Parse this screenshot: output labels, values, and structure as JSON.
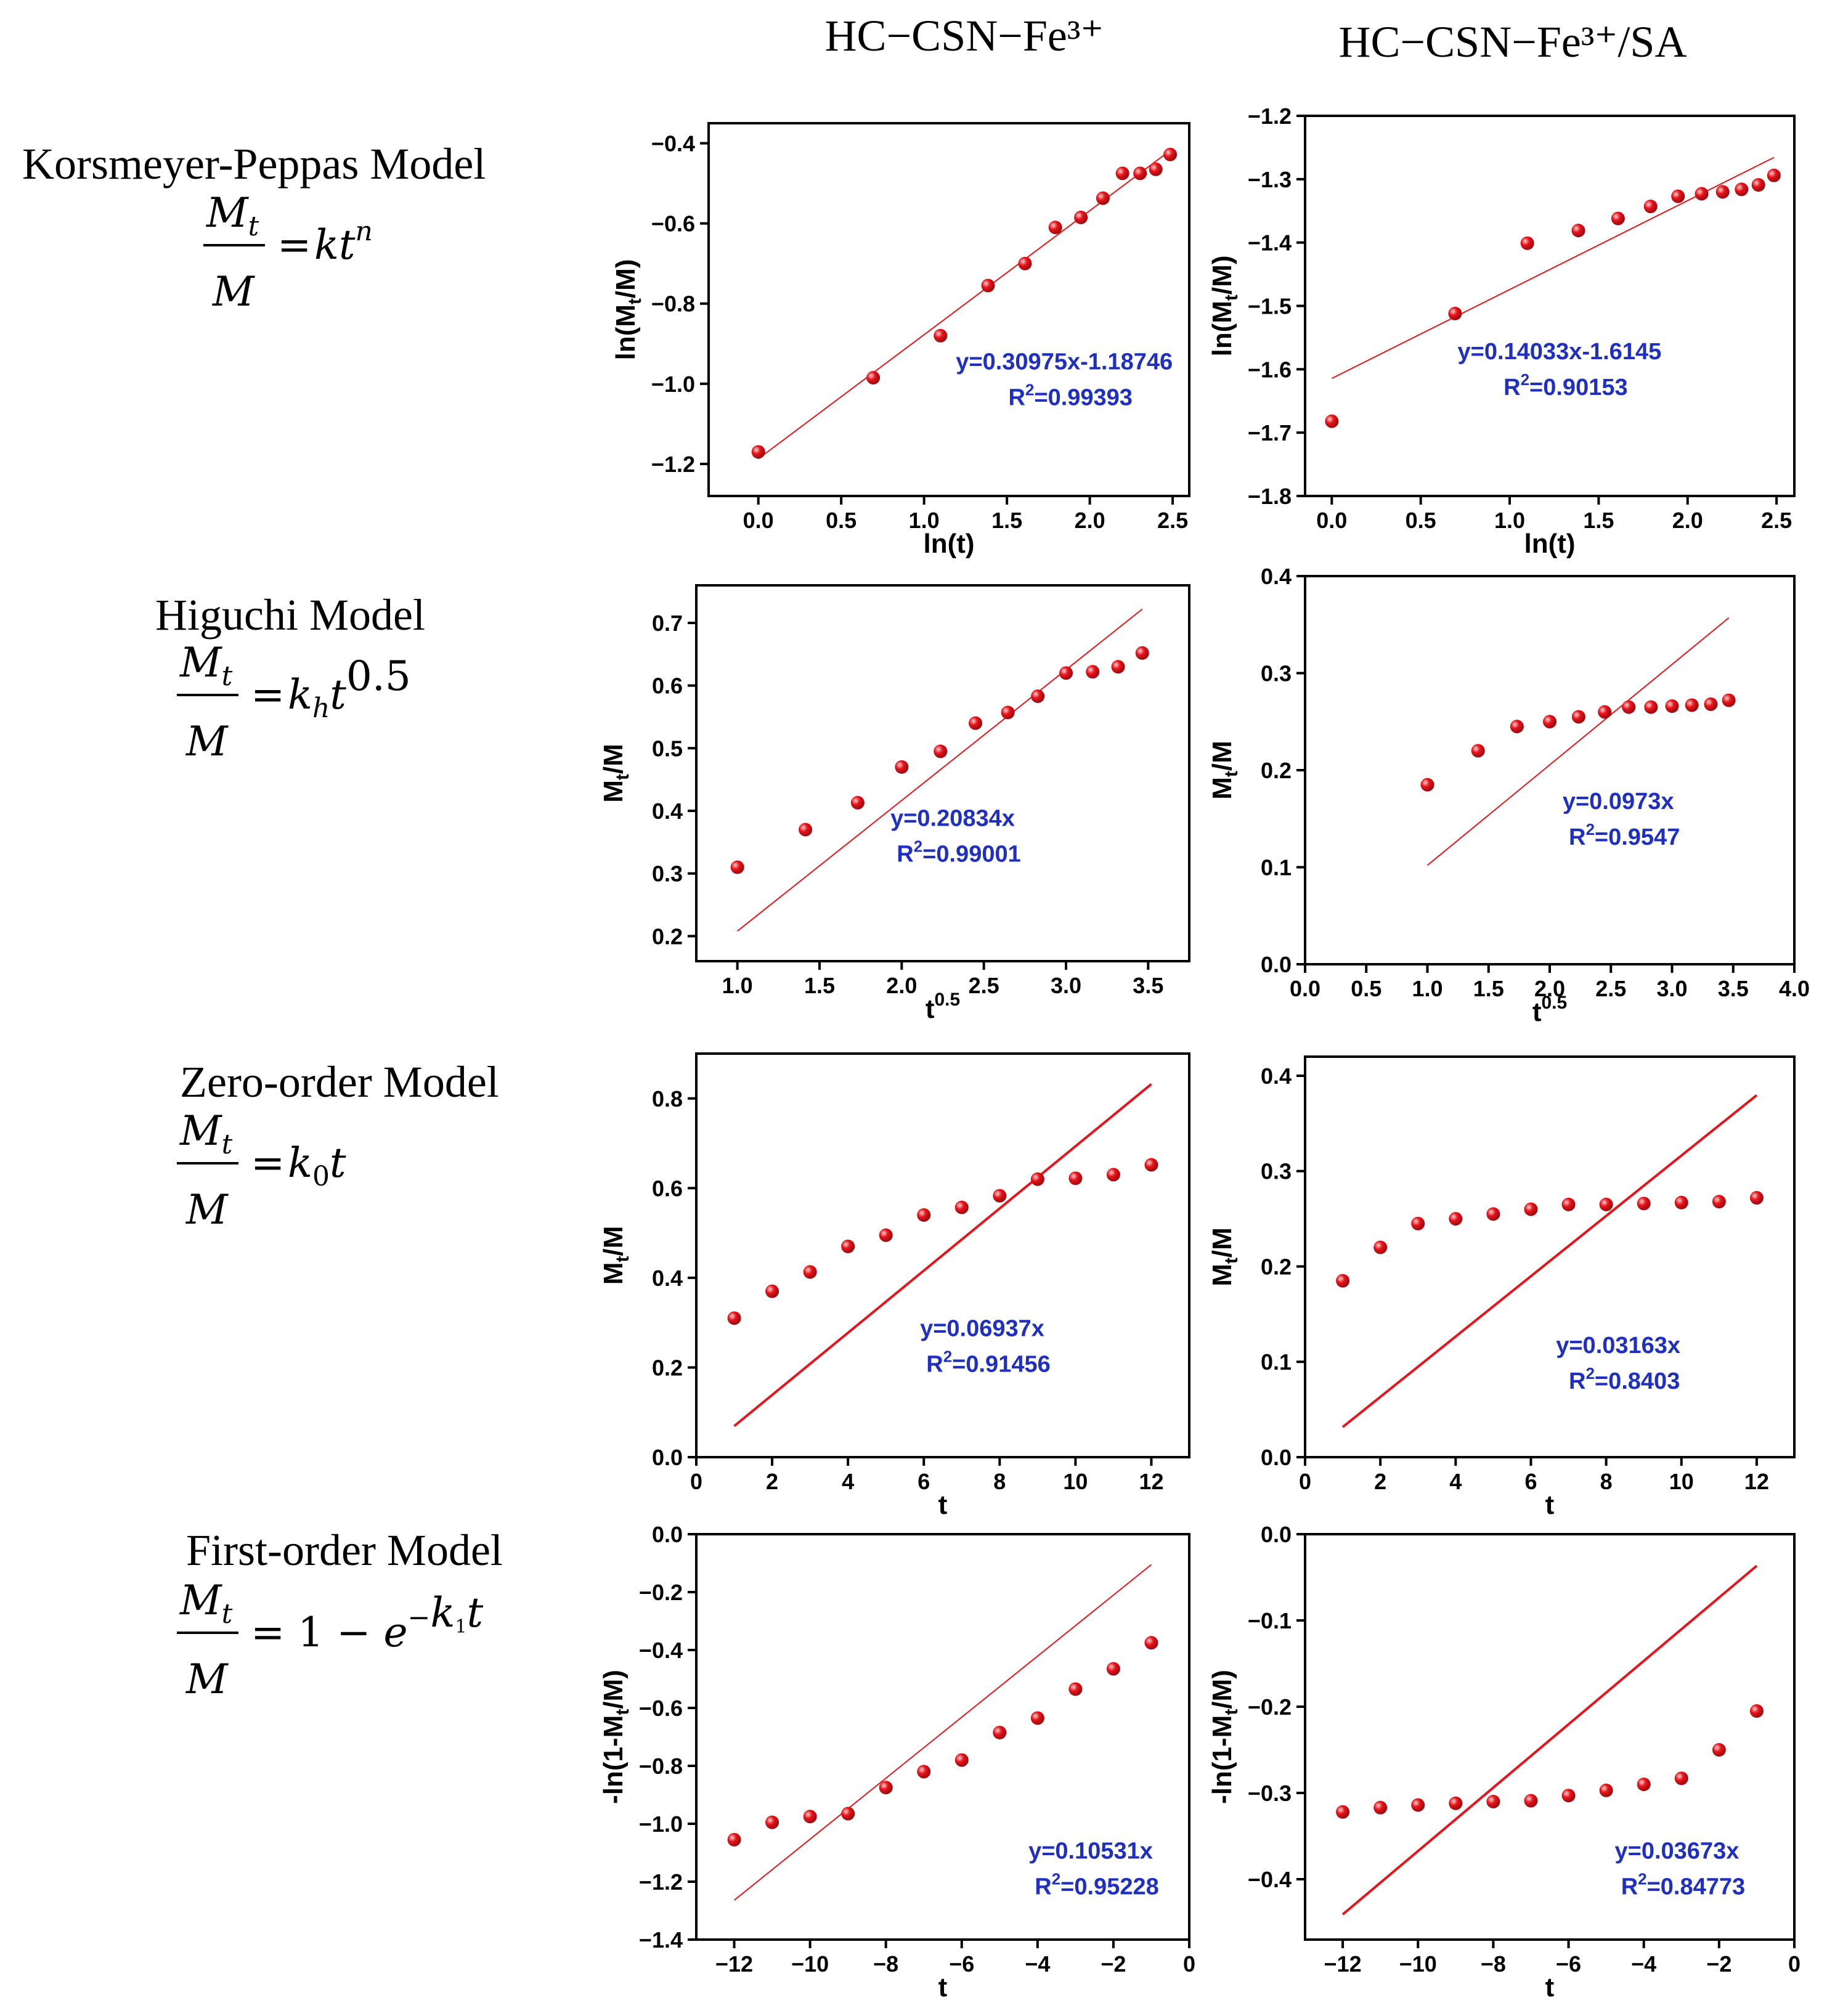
{
  "columns": [
    "HC−CSN−Fe³⁺",
    "HC−CSN−Fe³⁺/SA"
  ],
  "models": [
    {
      "name": "Korsmeyer-Peppas Model",
      "formula": "Mt/M = kt^n"
    },
    {
      "name": "Higuchi Model",
      "formula": "Mt/M = kh t^0.5"
    },
    {
      "name": "Zero-order Model",
      "formula": "Mt/M = k0 t"
    },
    {
      "name": "First-order Model",
      "formula": "Mt/M = 1 − e^(−k1 t)"
    }
  ],
  "chart_data": [
    {
      "type": "scatter",
      "row": 0,
      "col": 0,
      "xlabel": "ln(t)",
      "ylabel": "ln(Mt/M)",
      "xlim": [
        -0.3,
        2.6
      ],
      "ylim": [
        -1.28,
        -0.35
      ],
      "xticks": [
        0.0,
        0.5,
        1.0,
        1.5,
        2.0,
        2.5
      ],
      "yticks": [
        -1.2,
        -1.0,
        -0.8,
        -0.6,
        -0.4
      ],
      "xdec": 1,
      "ydec": 1,
      "x": [
        0.0,
        0.693,
        1.099,
        1.386,
        1.609,
        1.792,
        1.946,
        2.079,
        2.197,
        2.303,
        2.398,
        2.485
      ],
      "y": [
        -1.17,
        -0.985,
        -0.88,
        -0.755,
        -0.7,
        -0.61,
        -0.585,
        -0.537,
        -0.475,
        -0.475,
        -0.465,
        -0.428
      ],
      "fit": {
        "x": [
          0.0,
          2.485
        ],
        "y": [
          -1.187,
          -0.418
        ]
      },
      "equation": "y=0.30975x-1.18746",
      "r2": "=0.99393"
    },
    {
      "type": "scatter",
      "row": 0,
      "col": 1,
      "xlabel": "ln(t)",
      "ylabel": "ln(Mt/M)",
      "xlim": [
        -0.15,
        2.6
      ],
      "ylim": [
        -1.8,
        -1.2
      ],
      "xticks": [
        0.0,
        0.5,
        1.0,
        1.5,
        2.0,
        2.5
      ],
      "yticks": [
        -1.8,
        -1.7,
        -1.6,
        -1.5,
        -1.4,
        -1.3,
        -1.2
      ],
      "xdec": 1,
      "ydec": 1,
      "x": [
        0.0,
        0.693,
        1.099,
        1.386,
        1.609,
        1.792,
        1.946,
        2.079,
        2.197,
        2.303,
        2.398,
        2.485
      ],
      "y": [
        -1.682,
        -1.512,
        -1.401,
        -1.381,
        -1.362,
        -1.343,
        -1.327,
        -1.323,
        -1.32,
        -1.316,
        -1.309,
        -1.294
      ],
      "fit": {
        "x": [
          0.0,
          2.485
        ],
        "y": [
          -1.6145,
          -1.2658
        ]
      },
      "equation": "y=0.14033x-1.6145",
      "r2": "=0.90153"
    },
    {
      "type": "scatter",
      "row": 1,
      "col": 0,
      "xlabel": "t",
      "xsup": "0.5",
      "ylabel": "Mt/M",
      "xlim": [
        0.75,
        3.75
      ],
      "ylim": [
        0.16,
        0.76
      ],
      "xticks": [
        1.0,
        1.5,
        2.0,
        2.5,
        3.0,
        3.5
      ],
      "yticks": [
        0.2,
        0.3,
        0.4,
        0.5,
        0.6,
        0.7
      ],
      "xdec": 1,
      "ydec": 1,
      "x": [
        1.0,
        1.414,
        1.732,
        2.0,
        2.236,
        2.449,
        2.646,
        2.828,
        3.0,
        3.162,
        3.317,
        3.464
      ],
      "y": [
        0.31,
        0.37,
        0.413,
        0.47,
        0.495,
        0.54,
        0.557,
        0.583,
        0.62,
        0.622,
        0.63,
        0.652
      ],
      "fit": {
        "x": [
          1.0,
          3.464
        ],
        "y": [
          0.208,
          0.722
        ]
      },
      "equation": "y=0.20834x",
      "r2": "=0.99001"
    },
    {
      "type": "scatter",
      "row": 1,
      "col": 1,
      "xlabel": "t",
      "xsup": "0.5",
      "ylabel": "Mt/M",
      "xlim": [
        0.0,
        4.0
      ],
      "ylim": [
        0.0,
        0.4
      ],
      "xticks": [
        0.0,
        0.5,
        1.0,
        1.5,
        2.0,
        2.5,
        3.0,
        3.5,
        4.0
      ],
      "yticks": [
        0.0,
        0.1,
        0.2,
        0.3,
        0.4
      ],
      "xdec": 1,
      "ydec": 1,
      "x": [
        1.0,
        1.414,
        1.732,
        2.0,
        2.236,
        2.449,
        2.646,
        2.828,
        3.0,
        3.162,
        3.317,
        3.464
      ],
      "y": [
        0.185,
        0.22,
        0.245,
        0.25,
        0.255,
        0.26,
        0.265,
        0.265,
        0.266,
        0.267,
        0.268,
        0.272
      ],
      "fit": {
        "x": [
          1.0,
          3.464
        ],
        "y": [
          0.102,
          0.357
        ]
      },
      "equation": "y=0.0973x",
      "r2": "=0.9547"
    },
    {
      "type": "scatter",
      "row": 2,
      "col": 0,
      "xlabel": "t",
      "ylabel": "Mt/M",
      "xlim": [
        0,
        13
      ],
      "ylim": [
        0.0,
        0.9
      ],
      "xticks": [
        0,
        2,
        4,
        6,
        8,
        10,
        12
      ],
      "yticks": [
        0.0,
        0.2,
        0.4,
        0.6,
        0.8
      ],
      "xdec": 0,
      "ydec": 1,
      "x": [
        1,
        2,
        3,
        4,
        5,
        6,
        7,
        8,
        9,
        10,
        11,
        12
      ],
      "y": [
        0.31,
        0.37,
        0.413,
        0.47,
        0.495,
        0.54,
        0.557,
        0.583,
        0.62,
        0.622,
        0.63,
        0.652
      ],
      "fit": {
        "x": [
          1,
          12
        ],
        "y": [
          0.0694,
          0.832
        ]
      },
      "equation": "y=0.06937x",
      "r2": "=0.91456"
    },
    {
      "type": "scatter",
      "row": 2,
      "col": 1,
      "xlabel": "t",
      "ylabel": "Mt/M",
      "xlim": [
        0,
        13
      ],
      "ylim": [
        0.0,
        0.42
      ],
      "xticks": [
        0,
        2,
        4,
        6,
        8,
        10,
        12
      ],
      "yticks": [
        0.0,
        0.1,
        0.2,
        0.3,
        0.4
      ],
      "xdec": 0,
      "ydec": 1,
      "x": [
        1,
        2,
        3,
        4,
        5,
        6,
        7,
        8,
        9,
        10,
        11,
        12
      ],
      "y": [
        0.185,
        0.22,
        0.245,
        0.25,
        0.255,
        0.26,
        0.265,
        0.265,
        0.266,
        0.267,
        0.268,
        0.272
      ],
      "fit": {
        "x": [
          1,
          12
        ],
        "y": [
          0.0316,
          0.3796
        ]
      },
      "equation": "y=0.03163x",
      "r2": "=0.8403"
    },
    {
      "type": "scatter",
      "row": 3,
      "col": 0,
      "xlabel": "t",
      "ylabel": "-ln(1-Mt/M)",
      "xlim": [
        -13,
        0
      ],
      "ylim": [
        -1.4,
        0.0
      ],
      "xticks": [
        -12,
        -10,
        -8,
        -6,
        -4,
        -2,
        0
      ],
      "yticks": [
        -1.4,
        -1.2,
        -1.0,
        -0.8,
        -0.6,
        -0.4,
        -0.2,
        0.0
      ],
      "xdec": 0,
      "ydec": 1,
      "x": [
        -12,
        -11,
        -10,
        -9,
        -8,
        -7,
        -6,
        -5,
        -4,
        -3,
        -2,
        -1
      ],
      "y": [
        -1.055,
        -0.995,
        -0.975,
        -0.965,
        -0.875,
        -0.82,
        -0.78,
        -0.685,
        -0.635,
        -0.535,
        -0.465,
        -0.375
      ],
      "fit": {
        "x": [
          -12,
          -1
        ],
        "y": [
          -1.264,
          -0.105
        ]
      },
      "equation": "y=0.10531x",
      "r2": "=0.95228"
    },
    {
      "type": "scatter",
      "row": 3,
      "col": 1,
      "xlabel": "t",
      "ylabel": "-ln(1-Mt/M)",
      "xlim": [
        -13,
        0
      ],
      "ylim": [
        -0.47,
        0.0
      ],
      "xticks": [
        -12,
        -10,
        -8,
        -6,
        -4,
        -2,
        0
      ],
      "yticks": [
        -0.4,
        -0.3,
        -0.2,
        -0.1,
        0.0
      ],
      "xdec": 0,
      "ydec": 1,
      "x": [
        -12,
        -11,
        -10,
        -9,
        -8,
        -7,
        -6,
        -5,
        -4,
        -3,
        -2,
        -1
      ],
      "y": [
        -0.322,
        -0.317,
        -0.314,
        -0.312,
        -0.31,
        -0.309,
        -0.303,
        -0.297,
        -0.29,
        -0.283,
        -0.25,
        -0.205
      ],
      "fit": {
        "x": [
          -12,
          -1
        ],
        "y": [
          -0.4408,
          -0.0367
        ]
      },
      "equation": "y=0.03673x",
      "r2": "=0.84773"
    }
  ],
  "colors": {
    "points": "#e8141b",
    "fit": "#e8141b",
    "equation": "#1f2fbf"
  }
}
